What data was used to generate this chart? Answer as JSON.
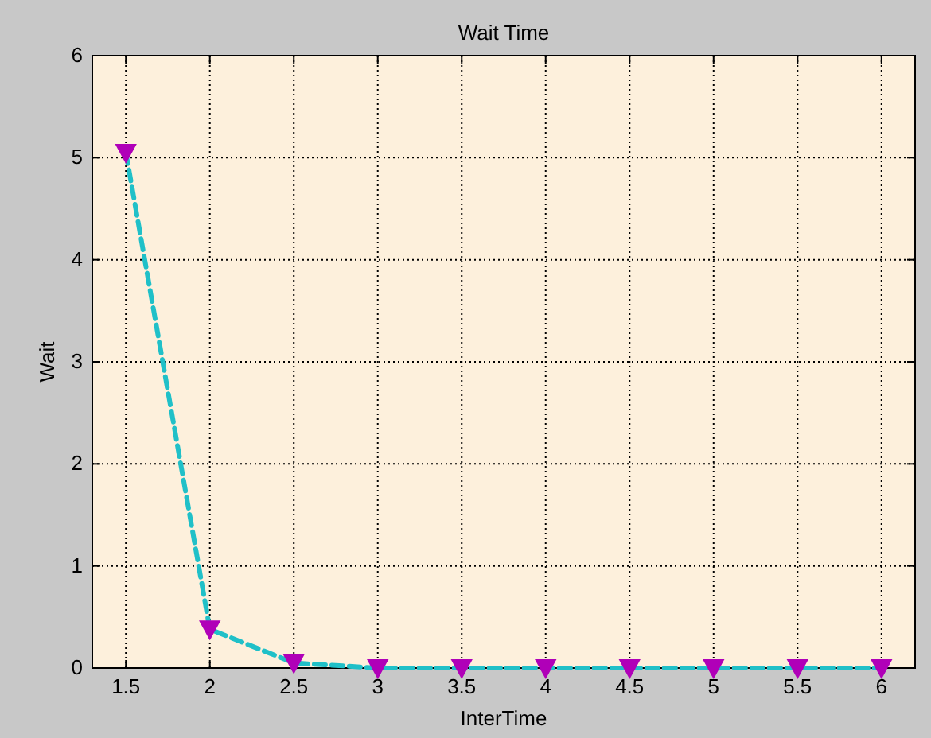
{
  "chart_data": {
    "type": "line",
    "title": "Wait Time",
    "xlabel": "InterTime",
    "ylabel": "Wait",
    "x": [
      1.5,
      2,
      2.5,
      3,
      3.5,
      4,
      4.5,
      5,
      5.5,
      6
    ],
    "series": [
      {
        "color": "#20c0c8",
        "values": [
          5.05,
          0.38,
          0.05,
          0,
          0,
          0,
          0,
          0,
          0,
          0
        ]
      }
    ],
    "xlim": [
      1.3,
      6.2
    ],
    "xticks": [
      1.5,
      2,
      2.5,
      3,
      3.5,
      4,
      4.5,
      5,
      5.5,
      6
    ],
    "ylim": [
      0,
      6
    ],
    "yticks": [
      0,
      1,
      2,
      3,
      4,
      5,
      6
    ],
    "grid": true,
    "marker": "triangle",
    "line_style": "dashed"
  }
}
